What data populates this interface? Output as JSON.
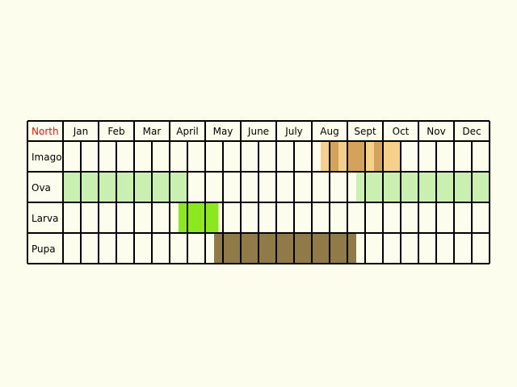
{
  "hemisphere_label": "North",
  "colors": {
    "background": "#fdfdee",
    "grid": "#000000",
    "hemisphere_label": "#e01010",
    "imago_light": "#f5d08a",
    "imago_dark": "#d3a35b",
    "ova": "#c9f0b0",
    "larva": "#8ce81e",
    "pupa": "#8f7a48"
  },
  "months": [
    "Jan",
    "Feb",
    "Mar",
    "April",
    "May",
    "June",
    "July",
    "Aug",
    "Sept",
    "Oct",
    "Nov",
    "Dec"
  ],
  "stages": [
    {
      "label": "Imago",
      "segments": [
        {
          "start_quarter": 29,
          "end_quarter": 30,
          "tone": "light"
        },
        {
          "start_quarter": 30,
          "end_quarter": 31,
          "tone": "dark"
        },
        {
          "start_quarter": 31,
          "end_quarter": 32,
          "tone": "light"
        },
        {
          "start_quarter": 32,
          "end_quarter": 34,
          "tone": "dark"
        },
        {
          "start_quarter": 34,
          "end_quarter": 35,
          "tone": "light"
        },
        {
          "start_quarter": 35,
          "end_quarter": 36,
          "tone": "dark"
        },
        {
          "start_quarter": 36,
          "end_quarter": 38,
          "tone": "light"
        }
      ]
    },
    {
      "label": "Ova",
      "segments": [
        {
          "start_quarter": 0,
          "end_quarter": 14,
          "tone": "normal"
        },
        {
          "start_quarter": 33,
          "end_quarter": 48,
          "tone": "normal"
        }
      ]
    },
    {
      "label": "Larva",
      "segments": [
        {
          "start_quarter": 13,
          "end_quarter": 17.5,
          "tone": "normal"
        }
      ]
    },
    {
      "label": "Pupa",
      "segments": [
        {
          "start_quarter": 17,
          "end_quarter": 33,
          "tone": "normal"
        }
      ]
    }
  ]
}
